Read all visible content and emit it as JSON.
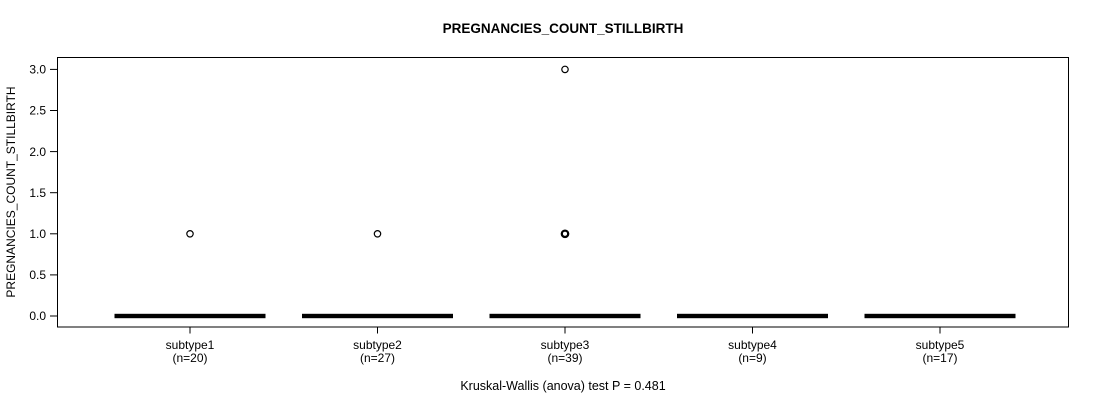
{
  "page": {
    "background_color": "#ffffff",
    "foreground_color": "#000000"
  },
  "chart_data": {
    "type": "boxplot",
    "title": "PREGNANCIES_COUNT_STILLBIRTH",
    "ylabel": "PREGNANCIES_COUNT_STILLBIRTH",
    "xlabel": "",
    "footer": "Kruskal-Wallis (anova) test P = 0.481",
    "stat_test": {
      "name": "Kruskal-Wallis (anova)",
      "p_value": 0.481
    },
    "ylim": [
      0,
      3
    ],
    "ytick_labels": [
      "0.0",
      "0.5",
      "1.0",
      "1.5",
      "2.0",
      "2.5",
      "3.0"
    ],
    "grid": "off",
    "legend": "none",
    "categories": [
      "subtype1",
      "subtype2",
      "subtype3",
      "subtype4",
      "subtype5"
    ],
    "groups": [
      {
        "label": "subtype1",
        "sublabel": "(n=20)",
        "n": 20,
        "median": 0,
        "q1": 0,
        "q3": 0,
        "whisker_low": 0,
        "whisker_high": 0,
        "outliers": [
          {
            "value": 1.0,
            "overplotted": false
          }
        ]
      },
      {
        "label": "subtype2",
        "sublabel": "(n=27)",
        "n": 27,
        "median": 0,
        "q1": 0,
        "q3": 0,
        "whisker_low": 0,
        "whisker_high": 0,
        "outliers": [
          {
            "value": 1.0,
            "overplotted": false
          }
        ]
      },
      {
        "label": "subtype3",
        "sublabel": "(n=39)",
        "n": 39,
        "median": 0,
        "q1": 0,
        "q3": 0,
        "whisker_low": 0,
        "whisker_high": 0,
        "outliers": [
          {
            "value": 1.0,
            "overplotted": true
          },
          {
            "value": 3.0,
            "overplotted": false
          }
        ]
      },
      {
        "label": "subtype4",
        "sublabel": "(n=9)",
        "n": 9,
        "median": 0,
        "q1": 0,
        "q3": 0,
        "whisker_low": 0,
        "whisker_high": 0,
        "outliers": []
      },
      {
        "label": "subtype5",
        "sublabel": "(n=17)",
        "n": 17,
        "median": 0,
        "q1": 0,
        "q3": 0,
        "whisker_low": 0,
        "whisker_high": 0,
        "outliers": []
      }
    ]
  }
}
